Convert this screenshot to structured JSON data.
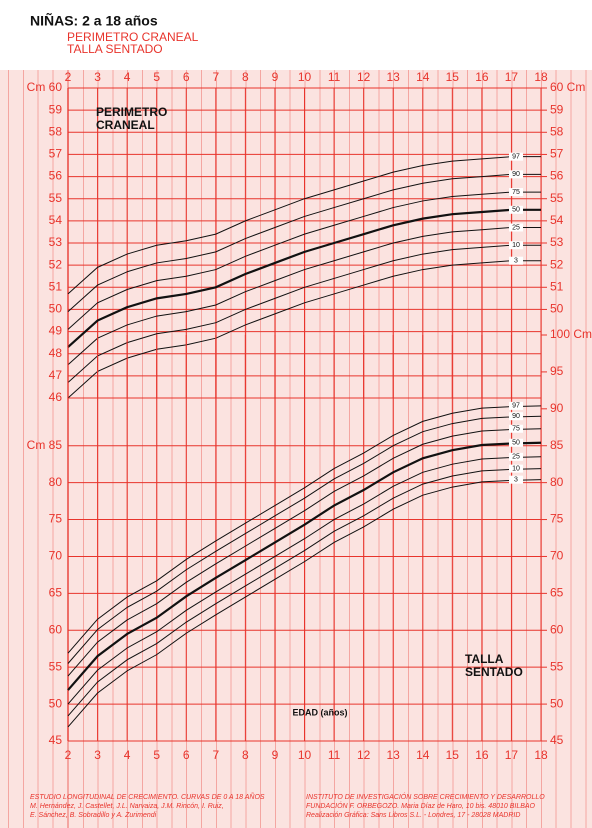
{
  "header": {
    "title": "NIÑAS:  2 a 18 años",
    "subtitle": [
      "PERIMETRO CRANEAL",
      "TALLA SENTADO"
    ]
  },
  "footer": {
    "left": [
      "ESTUDIO LONGITUDINAL DE CRECIMIENTO. CURVAS DE 0 A 18 AÑOS",
      "M. Hernández, J. Castellet, J.L. Narvaiza, J.M. Rincón, I. Ruiz,",
      "E. Sánchez, B. Sobradillo y A. Zurimendi"
    ],
    "right": [
      "INSTITUTO DE INVESTIGACIÓN SOBRE CRECIMIENTO Y DESARROLLO",
      "FUNDACIÓN F. ORBEGOZO. Maria Díaz de Haro, 10 bis. 48010 BILBAO",
      "Realización Gráfica: Sans Libros S.L. - Londres, 17 - 28028 MADRID"
    ]
  },
  "chart_data": [
    {
      "type": "line",
      "annotation": [
        "PERIMETRO",
        "CRANEAL"
      ],
      "grid": true,
      "color": "#e8342c",
      "xaxis": "top",
      "x": [
        2,
        3,
        4,
        5,
        6,
        7,
        8,
        9,
        10,
        11,
        12,
        13,
        14,
        15,
        16,
        17,
        18
      ],
      "xlim": [
        2,
        18
      ],
      "xticks": [
        2,
        3,
        4,
        5,
        6,
        7,
        8,
        9,
        10,
        11,
        12,
        13,
        14,
        15,
        16,
        17,
        18
      ],
      "ylim": [
        46,
        60
      ],
      "yticks": [
        46,
        47,
        48,
        49,
        50,
        51,
        52,
        53,
        54,
        55,
        56,
        57,
        58,
        59,
        {
          "value": 60,
          "label": "Cm 60"
        }
      ],
      "y2lim": [
        46,
        60
      ],
      "y2ticks": [
        50,
        51,
        52,
        53,
        54,
        55,
        56,
        57,
        58,
        59,
        {
          "value": 60,
          "label": "60 Cm"
        }
      ],
      "series": [
        {
          "name": "97",
          "color": "#111111",
          "width": 1,
          "values": [
            50.7,
            51.9,
            52.5,
            52.9,
            53.1,
            53.4,
            54.0,
            54.5,
            55.0,
            55.4,
            55.8,
            56.2,
            56.5,
            56.7,
            56.8,
            56.9,
            56.9
          ]
        },
        {
          "name": "90",
          "color": "#111111",
          "width": 1,
          "values": [
            49.9,
            51.1,
            51.7,
            52.1,
            52.3,
            52.6,
            53.2,
            53.7,
            54.2,
            54.6,
            55.0,
            55.4,
            55.7,
            55.9,
            56.0,
            56.1,
            56.1
          ]
        },
        {
          "name": "75",
          "color": "#111111",
          "width": 1,
          "values": [
            49.1,
            50.3,
            50.9,
            51.3,
            51.5,
            51.8,
            52.4,
            52.9,
            53.4,
            53.8,
            54.2,
            54.6,
            54.9,
            55.1,
            55.2,
            55.3,
            55.3
          ]
        },
        {
          "name": "50",
          "color": "#111111",
          "width": 2.2,
          "values": [
            48.3,
            49.5,
            50.1,
            50.5,
            50.7,
            51.0,
            51.6,
            52.1,
            52.6,
            53.0,
            53.4,
            53.8,
            54.1,
            54.3,
            54.4,
            54.5,
            54.5
          ]
        },
        {
          "name": "25",
          "color": "#111111",
          "width": 1,
          "values": [
            47.5,
            48.7,
            49.3,
            49.7,
            49.9,
            50.2,
            50.8,
            51.3,
            51.8,
            52.2,
            52.6,
            53.0,
            53.3,
            53.5,
            53.6,
            53.7,
            53.7
          ]
        },
        {
          "name": "10",
          "color": "#111111",
          "width": 1,
          "values": [
            46.7,
            47.9,
            48.5,
            48.9,
            49.1,
            49.4,
            50.0,
            50.5,
            51.0,
            51.4,
            51.8,
            52.2,
            52.5,
            52.7,
            52.8,
            52.9,
            52.9
          ]
        },
        {
          "name": "3",
          "color": "#111111",
          "width": 1,
          "values": [
            46.0,
            47.2,
            47.8,
            48.2,
            48.4,
            48.7,
            49.3,
            49.8,
            50.3,
            50.7,
            51.1,
            51.5,
            51.8,
            52.0,
            52.1,
            52.2,
            52.2
          ]
        }
      ]
    },
    {
      "type": "line",
      "annotation": [
        "TALLA",
        "SENTADO"
      ],
      "xlabel": "EDAD (años)",
      "grid": true,
      "color": "#e8342c",
      "xaxis": "bottom",
      "x": [
        2,
        3,
        4,
        5,
        6,
        7,
        8,
        9,
        10,
        11,
        12,
        13,
        14,
        15,
        16,
        17,
        18
      ],
      "xlim": [
        2,
        18
      ],
      "xticks": [
        2,
        3,
        4,
        5,
        6,
        7,
        8,
        9,
        10,
        11,
        12,
        13,
        14,
        15,
        16,
        17,
        18
      ],
      "ylim": [
        45,
        100
      ],
      "yticks": [
        45,
        50,
        55,
        60,
        65,
        70,
        75,
        80,
        {
          "value": 85,
          "label": "Cm 85"
        }
      ],
      "y2lim": [
        45,
        100
      ],
      "y2ticks": [
        45,
        50,
        55,
        60,
        65,
        70,
        75,
        80,
        85,
        90,
        95,
        {
          "value": 100,
          "label": "100 Cm"
        }
      ],
      "series": [
        {
          "name": "97",
          "color": "#111111",
          "width": 1,
          "values": [
            56.9,
            61.5,
            64.5,
            66.7,
            69.6,
            72.1,
            74.5,
            76.9,
            79.3,
            81.9,
            84.0,
            86.4,
            88.3,
            89.4,
            90.1,
            90.3,
            90.4
          ]
        },
        {
          "name": "90",
          "color": "#111111",
          "width": 1,
          "values": [
            55.5,
            60.1,
            63.1,
            65.3,
            68.2,
            70.7,
            73.1,
            75.5,
            77.9,
            80.5,
            82.6,
            85.0,
            86.9,
            88.0,
            88.7,
            88.9,
            89.0
          ]
        },
        {
          "name": "75",
          "color": "#111111",
          "width": 1,
          "values": [
            53.8,
            58.4,
            61.4,
            63.6,
            66.5,
            69.0,
            71.4,
            73.8,
            76.2,
            78.8,
            80.9,
            83.3,
            85.2,
            86.3,
            87.0,
            87.2,
            87.3
          ]
        },
        {
          "name": "50",
          "color": "#111111",
          "width": 2.2,
          "values": [
            51.9,
            56.5,
            59.5,
            61.7,
            64.6,
            67.1,
            69.5,
            71.9,
            74.3,
            76.9,
            79.0,
            81.4,
            83.3,
            84.4,
            85.1,
            85.3,
            85.4
          ]
        },
        {
          "name": "25",
          "color": "#111111",
          "width": 1,
          "values": [
            50.0,
            54.6,
            57.6,
            59.8,
            62.7,
            65.2,
            67.6,
            70.0,
            72.4,
            75.0,
            77.1,
            79.5,
            81.4,
            82.5,
            83.2,
            83.4,
            83.5
          ]
        },
        {
          "name": "10",
          "color": "#111111",
          "width": 1,
          "values": [
            48.4,
            53.0,
            56.0,
            58.2,
            61.1,
            63.6,
            66.0,
            68.4,
            70.8,
            73.4,
            75.5,
            77.9,
            79.8,
            80.9,
            81.6,
            81.8,
            81.9
          ]
        },
        {
          "name": "3",
          "color": "#111111",
          "width": 1,
          "values": [
            46.9,
            51.5,
            54.5,
            56.7,
            59.6,
            62.1,
            64.5,
            66.9,
            69.3,
            71.9,
            74.0,
            76.4,
            78.3,
            79.4,
            80.1,
            80.3,
            80.4
          ]
        }
      ]
    }
  ]
}
